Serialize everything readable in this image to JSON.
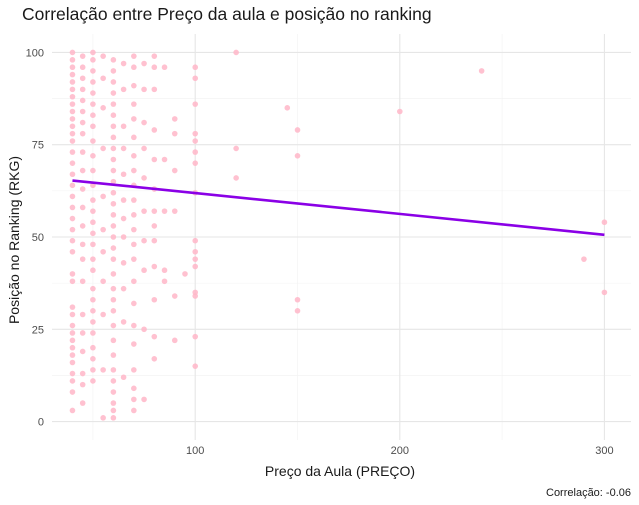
{
  "chart_data": {
    "type": "scatter",
    "title": "Correlação entre Preço da aula e posição no ranking",
    "xlabel": "Preço da Aula (PREÇO)",
    "ylabel": "Posição no Ranking (RKG)",
    "caption": "Correlação:  -0.06",
    "xlim": [
      30,
      313
    ],
    "ylim": [
      -5,
      105
    ],
    "x_ticks": [
      100,
      200,
      300
    ],
    "y_ticks": [
      0,
      25,
      50,
      75,
      100
    ],
    "grid": true,
    "point_color": "#ffb6c8",
    "line_color": "#8a00e6",
    "trend_line": [
      {
        "x": 40,
        "y": 65.3
      },
      {
        "x": 300,
        "y": 50.6
      }
    ],
    "series": [
      {
        "values": [
          {
            "x": 40,
            "y": 100
          },
          {
            "x": 40,
            "y": 98
          },
          {
            "x": 40,
            "y": 96
          },
          {
            "x": 40,
            "y": 94
          },
          {
            "x": 40,
            "y": 92
          },
          {
            "x": 40,
            "y": 90
          },
          {
            "x": 40,
            "y": 88
          },
          {
            "x": 40,
            "y": 86
          },
          {
            "x": 40,
            "y": 84
          },
          {
            "x": 40,
            "y": 82
          },
          {
            "x": 40,
            "y": 80
          },
          {
            "x": 40,
            "y": 78
          },
          {
            "x": 40,
            "y": 76
          },
          {
            "x": 40,
            "y": 73
          },
          {
            "x": 40,
            "y": 70
          },
          {
            "x": 40,
            "y": 67
          },
          {
            "x": 40,
            "y": 64
          },
          {
            "x": 40,
            "y": 61
          },
          {
            "x": 40,
            "y": 58
          },
          {
            "x": 40,
            "y": 55
          },
          {
            "x": 40,
            "y": 52
          },
          {
            "x": 40,
            "y": 49
          },
          {
            "x": 40,
            "y": 46
          },
          {
            "x": 40,
            "y": 40
          },
          {
            "x": 40,
            "y": 38
          },
          {
            "x": 40,
            "y": 31
          },
          {
            "x": 40,
            "y": 29
          },
          {
            "x": 40,
            "y": 26
          },
          {
            "x": 40,
            "y": 24
          },
          {
            "x": 40,
            "y": 22
          },
          {
            "x": 40,
            "y": 20
          },
          {
            "x": 40,
            "y": 18
          },
          {
            "x": 40,
            "y": 16
          },
          {
            "x": 40,
            "y": 13
          },
          {
            "x": 40,
            "y": 11
          },
          {
            "x": 40,
            "y": 8
          },
          {
            "x": 40,
            "y": 3
          },
          {
            "x": 45,
            "y": 99
          },
          {
            "x": 45,
            "y": 96
          },
          {
            "x": 45,
            "y": 93
          },
          {
            "x": 45,
            "y": 90
          },
          {
            "x": 45,
            "y": 87
          },
          {
            "x": 45,
            "y": 84
          },
          {
            "x": 45,
            "y": 81
          },
          {
            "x": 45,
            "y": 78
          },
          {
            "x": 45,
            "y": 73
          },
          {
            "x": 45,
            "y": 68
          },
          {
            "x": 45,
            "y": 63
          },
          {
            "x": 45,
            "y": 58
          },
          {
            "x": 45,
            "y": 53
          },
          {
            "x": 45,
            "y": 48
          },
          {
            "x": 45,
            "y": 44
          },
          {
            "x": 45,
            "y": 38
          },
          {
            "x": 45,
            "y": 29
          },
          {
            "x": 45,
            "y": 24
          },
          {
            "x": 45,
            "y": 19
          },
          {
            "x": 45,
            "y": 13
          },
          {
            "x": 45,
            "y": 10
          },
          {
            "x": 45,
            "y": 5
          },
          {
            "x": 50,
            "y": 100
          },
          {
            "x": 50,
            "y": 98
          },
          {
            "x": 50,
            "y": 95
          },
          {
            "x": 50,
            "y": 92
          },
          {
            "x": 50,
            "y": 89
          },
          {
            "x": 50,
            "y": 86
          },
          {
            "x": 50,
            "y": 83
          },
          {
            "x": 50,
            "y": 80
          },
          {
            "x": 50,
            "y": 76
          },
          {
            "x": 50,
            "y": 72
          },
          {
            "x": 50,
            "y": 68
          },
          {
            "x": 50,
            "y": 64
          },
          {
            "x": 50,
            "y": 60
          },
          {
            "x": 50,
            "y": 57
          },
          {
            "x": 50,
            "y": 54
          },
          {
            "x": 50,
            "y": 51
          },
          {
            "x": 50,
            "y": 48
          },
          {
            "x": 50,
            "y": 44
          },
          {
            "x": 50,
            "y": 41
          },
          {
            "x": 50,
            "y": 36
          },
          {
            "x": 50,
            "y": 33
          },
          {
            "x": 50,
            "y": 30
          },
          {
            "x": 50,
            "y": 27
          },
          {
            "x": 50,
            "y": 24
          },
          {
            "x": 50,
            "y": 20
          },
          {
            "x": 50,
            "y": 17
          },
          {
            "x": 50,
            "y": 14
          },
          {
            "x": 50,
            "y": 11
          },
          {
            "x": 55,
            "y": 99
          },
          {
            "x": 55,
            "y": 93
          },
          {
            "x": 55,
            "y": 85
          },
          {
            "x": 55,
            "y": 74
          },
          {
            "x": 55,
            "y": 61
          },
          {
            "x": 55,
            "y": 52
          },
          {
            "x": 55,
            "y": 46
          },
          {
            "x": 55,
            "y": 38
          },
          {
            "x": 55,
            "y": 29
          },
          {
            "x": 55,
            "y": 14
          },
          {
            "x": 55,
            "y": 1
          },
          {
            "x": 60,
            "y": 98
          },
          {
            "x": 60,
            "y": 95
          },
          {
            "x": 60,
            "y": 92
          },
          {
            "x": 60,
            "y": 89
          },
          {
            "x": 60,
            "y": 86
          },
          {
            "x": 60,
            "y": 83
          },
          {
            "x": 60,
            "y": 80
          },
          {
            "x": 60,
            "y": 77
          },
          {
            "x": 60,
            "y": 74
          },
          {
            "x": 60,
            "y": 71
          },
          {
            "x": 60,
            "y": 68
          },
          {
            "x": 60,
            "y": 65
          },
          {
            "x": 60,
            "y": 62
          },
          {
            "x": 60,
            "y": 59
          },
          {
            "x": 60,
            "y": 56
          },
          {
            "x": 60,
            "y": 53
          },
          {
            "x": 60,
            "y": 50
          },
          {
            "x": 60,
            "y": 47
          },
          {
            "x": 60,
            "y": 44
          },
          {
            "x": 60,
            "y": 40
          },
          {
            "x": 60,
            "y": 36
          },
          {
            "x": 60,
            "y": 33
          },
          {
            "x": 60,
            "y": 30
          },
          {
            "x": 60,
            "y": 26
          },
          {
            "x": 60,
            "y": 22
          },
          {
            "x": 60,
            "y": 18
          },
          {
            "x": 60,
            "y": 14
          },
          {
            "x": 60,
            "y": 11
          },
          {
            "x": 60,
            "y": 8
          },
          {
            "x": 60,
            "y": 5
          },
          {
            "x": 60,
            "y": 3
          },
          {
            "x": 60,
            "y": 1
          },
          {
            "x": 65,
            "y": 97
          },
          {
            "x": 65,
            "y": 90
          },
          {
            "x": 65,
            "y": 80
          },
          {
            "x": 65,
            "y": 74
          },
          {
            "x": 65,
            "y": 67
          },
          {
            "x": 65,
            "y": 60
          },
          {
            "x": 65,
            "y": 55
          },
          {
            "x": 65,
            "y": 50
          },
          {
            "x": 65,
            "y": 43
          },
          {
            "x": 65,
            "y": 36
          },
          {
            "x": 65,
            "y": 27
          },
          {
            "x": 65,
            "y": 12
          },
          {
            "x": 70,
            "y": 99
          },
          {
            "x": 70,
            "y": 96
          },
          {
            "x": 70,
            "y": 91
          },
          {
            "x": 70,
            "y": 86
          },
          {
            "x": 70,
            "y": 82
          },
          {
            "x": 70,
            "y": 77
          },
          {
            "x": 70,
            "y": 72
          },
          {
            "x": 70,
            "y": 68
          },
          {
            "x": 70,
            "y": 64
          },
          {
            "x": 70,
            "y": 60
          },
          {
            "x": 70,
            "y": 56
          },
          {
            "x": 70,
            "y": 52
          },
          {
            "x": 70,
            "y": 48
          },
          {
            "x": 70,
            "y": 44
          },
          {
            "x": 70,
            "y": 38
          },
          {
            "x": 70,
            "y": 32
          },
          {
            "x": 70,
            "y": 26
          },
          {
            "x": 70,
            "y": 21
          },
          {
            "x": 70,
            "y": 14
          },
          {
            "x": 70,
            "y": 9
          },
          {
            "x": 70,
            "y": 6
          },
          {
            "x": 70,
            "y": 3
          },
          {
            "x": 75,
            "y": 97
          },
          {
            "x": 75,
            "y": 90
          },
          {
            "x": 75,
            "y": 81
          },
          {
            "x": 75,
            "y": 74
          },
          {
            "x": 75,
            "y": 66
          },
          {
            "x": 75,
            "y": 57
          },
          {
            "x": 75,
            "y": 49
          },
          {
            "x": 75,
            "y": 41
          },
          {
            "x": 75,
            "y": 25
          },
          {
            "x": 75,
            "y": 6
          },
          {
            "x": 80,
            "y": 99
          },
          {
            "x": 80,
            "y": 96
          },
          {
            "x": 80,
            "y": 90
          },
          {
            "x": 80,
            "y": 79
          },
          {
            "x": 80,
            "y": 71
          },
          {
            "x": 80,
            "y": 63
          },
          {
            "x": 80,
            "y": 57
          },
          {
            "x": 80,
            "y": 53
          },
          {
            "x": 80,
            "y": 49
          },
          {
            "x": 80,
            "y": 42
          },
          {
            "x": 80,
            "y": 33
          },
          {
            "x": 80,
            "y": 23
          },
          {
            "x": 80,
            "y": 17
          },
          {
            "x": 85,
            "y": 96
          },
          {
            "x": 85,
            "y": 71
          },
          {
            "x": 85,
            "y": 57
          },
          {
            "x": 85,
            "y": 41
          },
          {
            "x": 85,
            "y": 38
          },
          {
            "x": 90,
            "y": 82
          },
          {
            "x": 90,
            "y": 78
          },
          {
            "x": 90,
            "y": 68
          },
          {
            "x": 90,
            "y": 57
          },
          {
            "x": 90,
            "y": 34
          },
          {
            "x": 90,
            "y": 22
          },
          {
            "x": 95,
            "y": 40
          },
          {
            "x": 100,
            "y": 96
          },
          {
            "x": 100,
            "y": 93
          },
          {
            "x": 100,
            "y": 86
          },
          {
            "x": 100,
            "y": 78
          },
          {
            "x": 100,
            "y": 76
          },
          {
            "x": 100,
            "y": 73
          },
          {
            "x": 100,
            "y": 70
          },
          {
            "x": 100,
            "y": 62
          },
          {
            "x": 100,
            "y": 49
          },
          {
            "x": 100,
            "y": 46
          },
          {
            "x": 100,
            "y": 44
          },
          {
            "x": 100,
            "y": 42
          },
          {
            "x": 100,
            "y": 35
          },
          {
            "x": 100,
            "y": 34
          },
          {
            "x": 100,
            "y": 23
          },
          {
            "x": 100,
            "y": 15
          },
          {
            "x": 120,
            "y": 100
          },
          {
            "x": 120,
            "y": 74
          },
          {
            "x": 120,
            "y": 66
          },
          {
            "x": 145,
            "y": 85
          },
          {
            "x": 150,
            "y": 79
          },
          {
            "x": 150,
            "y": 72
          },
          {
            "x": 150,
            "y": 33
          },
          {
            "x": 150,
            "y": 30
          },
          {
            "x": 200,
            "y": 84
          },
          {
            "x": 240,
            "y": 95
          },
          {
            "x": 290,
            "y": 44
          },
          {
            "x": 300,
            "y": 54
          },
          {
            "x": 300,
            "y": 35
          }
        ]
      }
    ]
  }
}
